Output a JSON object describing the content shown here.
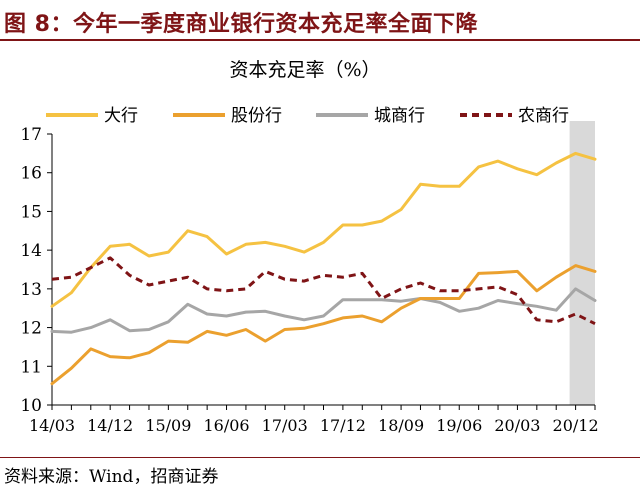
{
  "figure": {
    "title": "图 8：今年一季度商业银行资本充足率全面下降",
    "source": "资料来源：Wind，招商证券"
  },
  "chart_data": {
    "type": "line",
    "title": "资本充足率（%）",
    "xlabel": "",
    "ylabel": "",
    "ylim": [
      10,
      17
    ],
    "yticks": [
      10,
      11,
      12,
      13,
      14,
      15,
      16,
      17
    ],
    "x": [
      "14/03",
      "14/06",
      "14/09",
      "14/12",
      "15/03",
      "15/06",
      "15/09",
      "15/12",
      "16/03",
      "16/06",
      "16/09",
      "16/12",
      "17/03",
      "17/06",
      "17/09",
      "17/12",
      "18/03",
      "18/06",
      "18/09",
      "18/12",
      "19/03",
      "19/06",
      "19/09",
      "19/12",
      "20/03",
      "20/06",
      "20/09",
      "20/12",
      "21/03"
    ],
    "xtick_labels": [
      "14/03",
      "14/12",
      "15/09",
      "16/06",
      "17/03",
      "17/12",
      "18/09",
      "19/06",
      "20/03",
      "20/12"
    ],
    "highlight": {
      "from": "20/12",
      "to": "21/03",
      "color": "#d9d9d9"
    },
    "legend_position": "top",
    "grid": false,
    "series": [
      {
        "name": "大行",
        "color": "#f5c242",
        "style": "solid",
        "values": [
          12.55,
          12.9,
          13.55,
          14.1,
          14.15,
          13.85,
          13.95,
          14.5,
          14.35,
          13.9,
          14.15,
          14.2,
          14.1,
          13.95,
          14.2,
          14.65,
          14.65,
          14.75,
          15.05,
          15.7,
          15.65,
          15.65,
          16.15,
          16.3,
          16.1,
          15.95,
          16.25,
          16.5,
          16.35
        ]
      },
      {
        "name": "股份行",
        "color": "#eba02e",
        "style": "solid",
        "values": [
          10.55,
          10.95,
          11.45,
          11.25,
          11.22,
          11.35,
          11.65,
          11.62,
          11.9,
          11.8,
          11.95,
          11.65,
          11.95,
          11.98,
          12.1,
          12.25,
          12.3,
          12.15,
          12.5,
          12.75,
          12.75,
          12.75,
          13.4,
          13.42,
          13.45,
          12.95,
          13.3,
          13.6,
          13.45
        ]
      },
      {
        "name": "城商行",
        "color": "#a6a6a6",
        "style": "solid",
        "values": [
          11.9,
          11.88,
          12.0,
          12.2,
          11.92,
          11.95,
          12.15,
          12.6,
          12.35,
          12.3,
          12.4,
          12.42,
          12.3,
          12.2,
          12.3,
          12.72,
          12.72,
          12.72,
          12.68,
          12.75,
          12.65,
          12.42,
          12.5,
          12.7,
          12.62,
          12.55,
          12.45,
          13.0,
          12.7
        ]
      },
      {
        "name": "农商行",
        "color": "#7f1416",
        "style": "dashed",
        "values": [
          13.25,
          13.3,
          13.55,
          13.8,
          13.35,
          13.1,
          13.2,
          13.3,
          13.0,
          12.95,
          13.0,
          13.45,
          13.25,
          13.2,
          13.35,
          13.3,
          13.4,
          12.75,
          13.0,
          13.15,
          12.95,
          12.95,
          13.0,
          13.05,
          12.85,
          12.2,
          12.15,
          12.35,
          12.1
        ]
      }
    ]
  }
}
